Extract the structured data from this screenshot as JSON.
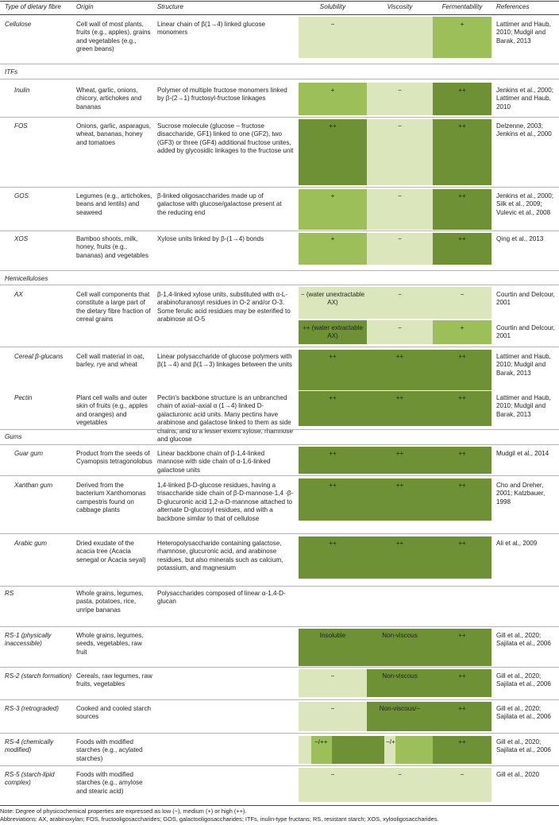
{
  "headers": {
    "type": "Type of dietary fibre",
    "origin": "Origin",
    "structure": "Structure",
    "solubility": "Solubility",
    "viscosity": "Viscosity",
    "fermentability": "Fermentability",
    "references": "References"
  },
  "colors": {
    "low": "#dbe6bd",
    "medium": "#9dbf5a",
    "high": "#6e9135",
    "link": "#2a7a8c"
  },
  "sections": {
    "itfs": "ITFs",
    "hemicelluloses": "Hemicelluloses",
    "gums": "Gums"
  },
  "rows": {
    "cellulose": {
      "name": "Cellulose",
      "origin": "Cell wall of most plants, fruits (e.g., apples), grains and vegetables (e.g., green beans)",
      "structure": "Linear chain of β(1→4) linked glucose monomers",
      "solubility": "−",
      "viscosity": "",
      "fermentability": "+",
      "ref": "Lattimer and Haub, 2010; Mudgil and Barak, 2013"
    },
    "inulin": {
      "name": "Inulin",
      "origin": "Wheat, garlic, onions, chicory, artichokes and bananas",
      "structure": "Polymer of multiple fructose monomers linked by β-(2→1) fructosyl-fructose linkages",
      "solubility": "+",
      "viscosity": "−",
      "fermentability": "++",
      "ref": "Jenkins et al., 2000; Lattimer and Haub, 2010"
    },
    "fos": {
      "name": "FOS",
      "origin": "Onions, garlic, asparagus, wheat, bananas, honey and tomatoes",
      "structure": "Sucrose molecule (glucose – fructose disaccharide, GF1) linked to one (GF2), two (GF3) or three (GF4) additional fructose unites, added by glycosidic linkages to the fructose unit",
      "solubility": "++",
      "viscosity": "−",
      "fermentability": "++",
      "ref": "Delzenne, 2003; Jenkins et al., 2000"
    },
    "gos": {
      "name": "GOS",
      "origin": "Legumes (e.g., artichokes, beans and lentils) and seaweed",
      "structure": "β-linked oligosaccharides made up of galactose with glucose/galactose present at the reducing end",
      "solubility": "+",
      "viscosity": "−",
      "fermentability": "++",
      "ref": "Jenkins et al., 2000; Silk et al., 2009; Vulevic et al., 2008"
    },
    "xos": {
      "name": "XOS",
      "origin": "Bamboo shoots, milk, honey, fruits (e.g., bananas) and vegetables",
      "structure": "Xylose units linked by β-(1→4) bonds",
      "solubility": "+",
      "viscosity": "−",
      "fermentability": "++",
      "ref": "Qing et al., 2013"
    },
    "ax": {
      "name": "AX",
      "origin": "Cell wall components that constitute a large part of the dietary fibre fraction of cereal grains",
      "structure": "β-1,4-linked xylose units, substituted with α-L-arabinofuranosyl residues in O-2 and/or O-3. Some ferulic acid residues may be esterified to arabinose at O-5",
      "sol1": "− (water unextractable AX)",
      "visc1": "−",
      "ferm1": "−",
      "ref1": "Courtin and Delcour, 2001",
      "sol2": "++ (water extractable AX)",
      "visc2": "−",
      "ferm2": "+",
      "ref2": "Courtin and Delcour, 2001"
    },
    "cereal": {
      "name": "Cereal β-glucans",
      "origin": "Cell wall material in oat, barley, rye and wheat",
      "structure": "Linear polysaccharide of glucose polymers with β(1→4) and β(1→3) linkages between the units",
      "solubility": "++",
      "viscosity": "++",
      "fermentability": "++",
      "ref": "Lattimer and Haub, 2010; Mudgil and Barak, 2013"
    },
    "pectin": {
      "name": "Pectin",
      "origin": "Plant cell walls and outer skin of fruits (e.g., apples and oranges) and vegetables",
      "structure": "Pectin's backbone structure is an unbranched chain of axial–axial α (1→4) linked D-galacturonic acid units. Many pectins have arabinose and galactose linked to them as side chains, and to a lesser extent xylose, rhamnose and glucose",
      "solubility": "++",
      "viscosity": "++",
      "fermentability": "++",
      "ref": "Lattimer and Haub, 2010; Mudgil and Barak, 2013"
    },
    "guar": {
      "name": "Guar gum",
      "origin": "Product from the seeds of Cyamopsis tetragonolobus",
      "structure": "Linear backbone chain of β-1,4-linked mannose with side chain of α-1,6-linked galactose units",
      "solubility": "++",
      "viscosity": "++",
      "fermentability": "++",
      "ref": "Mudgil et al., 2014"
    },
    "xanthan": {
      "name": "Xanthan gum",
      "origin": "Derived from the bacterium Xanthomonas campestris found on cabbage plants",
      "structure": "1,4-linked β-D-glucose residues, having a trisaccharide side chain of β-D-mannose-1,4 -β-D-glucuronic acid 1,2-a-D-mannose attached to alternate D-glucosyl residues, and with a backbone similar to that of cellulose",
      "solubility": "++",
      "viscosity": "++",
      "fermentability": "++",
      "ref": "Cho and Dreher, 2001; Katzbauer, 1998"
    },
    "arabic": {
      "name": "Arabic gum",
      "origin": "Dried exudate of the acacia tree (Acacia senegal or Acacia seyal)",
      "structure": "Heteropolysaccharide containing galactose, rhamnose, glucuronic acid, and arabinose residues, but also minerals such as calcium, potassium, and magnesium",
      "solubility": "++",
      "viscosity": "++",
      "fermentability": "++",
      "ref": "Ali et al., 2009"
    },
    "rs": {
      "name": "RS",
      "origin": "Whole grains, legumes, pasta, potatoes, rice, unripe bananas",
      "structure": "Polysaccharides composed of linear α-1,4-D-glucan"
    },
    "rs1": {
      "name": "RS-1 (physically inaccessible)",
      "origin": "Whole grains, legumes, seeds, vegetables, raw fruit",
      "solubility": "Insoluble",
      "viscosity": "Non-viscous",
      "fermentability": "++",
      "ref": "Gill et al., 2020; Sajilata et al., 2006"
    },
    "rs2": {
      "name": "RS-2 (starch formation)",
      "origin": "Cereals, raw legumes, raw fruits, vegetables",
      "solubility": "−",
      "viscosity": "Non-viscous",
      "fermentability": "++",
      "ref": "Gill et al., 2020; Sajilata et al., 2006"
    },
    "rs3": {
      "name": "RS-3 (retrograded)",
      "origin": "Cooked and cooled starch sources",
      "solubility": "−",
      "viscosity": "Non-viscous/−",
      "fermentability": "++",
      "ref": "Gill et al., 2020; Sajilata et al., 2006"
    },
    "rs4": {
      "name": "RS-4 (chemically modified)",
      "origin": "Foods with modified starches (e.g., acylated starches)",
      "solubility": "−/++",
      "viscosity": "−/+",
      "fermentability": "++",
      "ref": "Gill et al., 2020; Sajilata et al., 2006"
    },
    "rs5": {
      "name": "RS-5 (starch-lipid complex)",
      "origin": "Foods with modified starches (e.g., amylose and stearic acid)",
      "solubility": "−",
      "viscosity": "−",
      "fermentability": "−",
      "ref": "Gill et al., 2020"
    }
  },
  "note": "Note: Degree of physicochemical properties are expressed as low (−), medium (+) or high (++).",
  "abbreviations": "Abbreviations: AX, arabinoxylan; FOS, fructooligosaccharides; GOS, galactooligosaccharides; ITFs, inulin-type fructans; RS, resistant starch; XOS, xylooligosaccharides."
}
